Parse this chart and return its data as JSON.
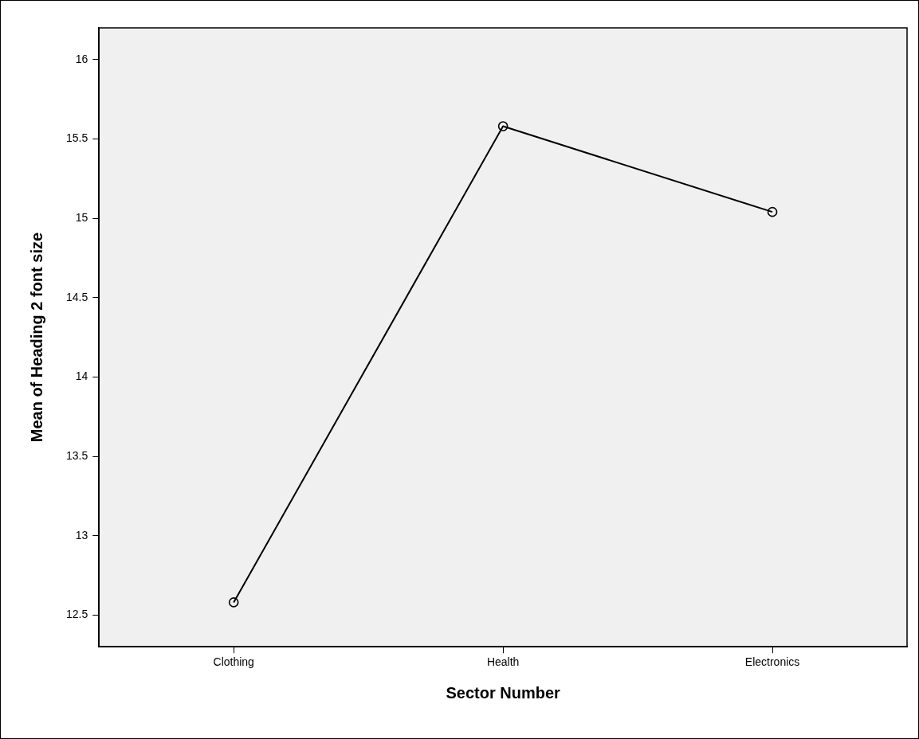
{
  "chart_data": {
    "type": "line",
    "xlabel": "Sector Number",
    "ylabel": "Mean of Heading 2 font size",
    "categories": [
      "Clothing",
      "Health",
      "Electronics"
    ],
    "series": [
      {
        "color": "#000000",
        "values": [
          12.58,
          15.58,
          15.04
        ]
      }
    ],
    "ylim": [
      12.3,
      16.2
    ],
    "yticks": [
      12.5,
      13,
      13.5,
      14,
      14.5,
      15,
      15.5,
      16
    ],
    "grid": false,
    "legend": false,
    "marker": "circle",
    "line_style": "solid"
  }
}
